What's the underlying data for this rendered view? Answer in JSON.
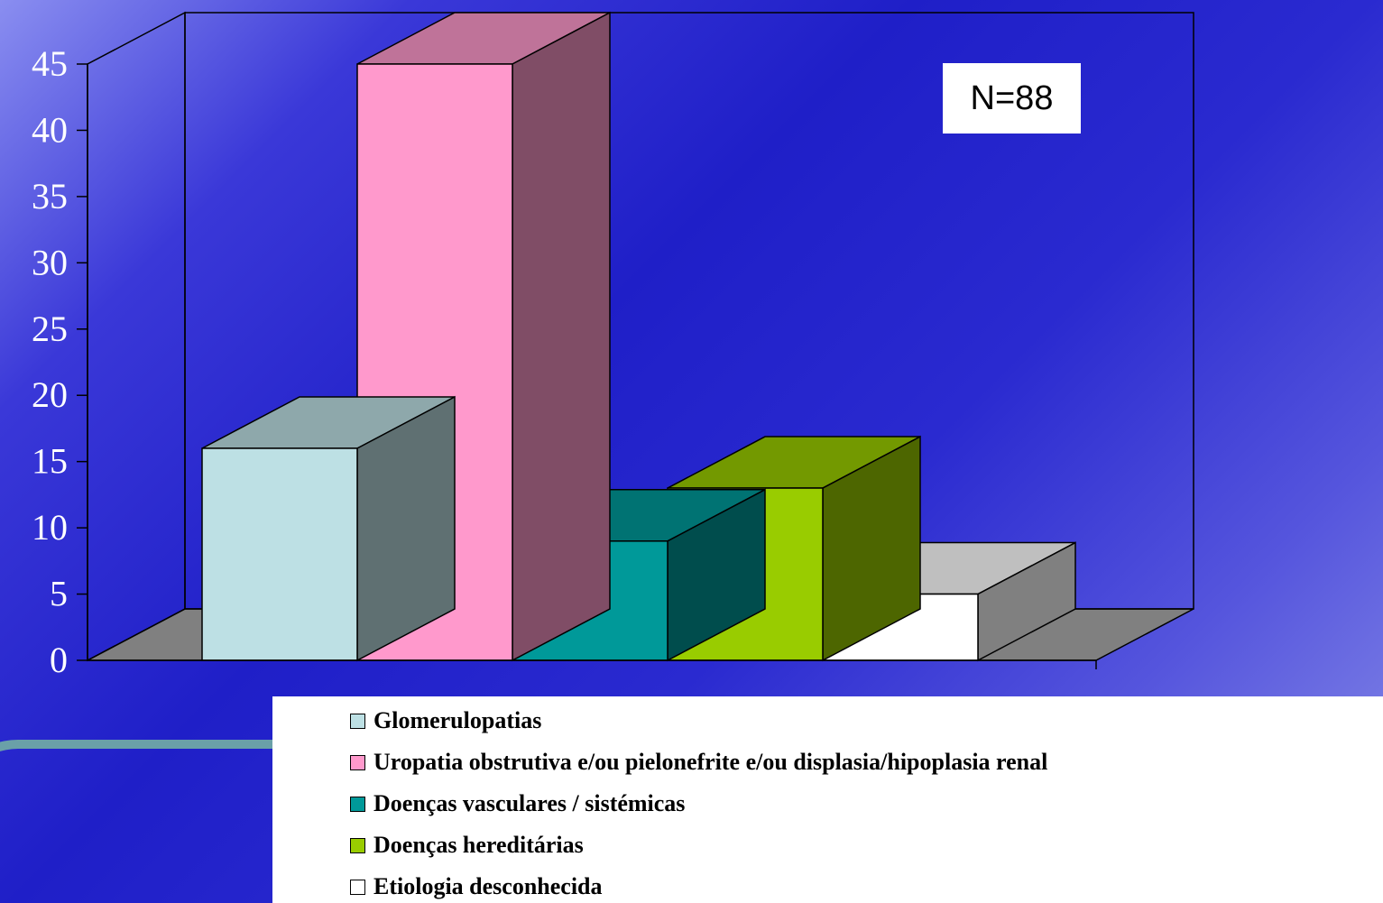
{
  "chart_data": {
    "type": "bar",
    "title": "",
    "xlabel": "",
    "ylabel": "",
    "ylim": [
      0,
      45
    ],
    "yticks": [
      0,
      5,
      10,
      15,
      20,
      25,
      30,
      35,
      40,
      45
    ],
    "categories": [
      "Glomerulopatias",
      "Uropatia obstrutiva e/ou pielonefrite e/ou displasia/hipoplasia renal",
      "Doenças vasculares / sistémicas",
      "Doenças hereditárias",
      "Etiologia desconhecida"
    ],
    "values": [
      16,
      45,
      9,
      13,
      5
    ],
    "colors": [
      "#bde0e4",
      "#ff99cc",
      "#009999",
      "#99cc00",
      "#ffffff"
    ],
    "legend_position": "bottom",
    "annotation": "N=88",
    "grid": false
  }
}
